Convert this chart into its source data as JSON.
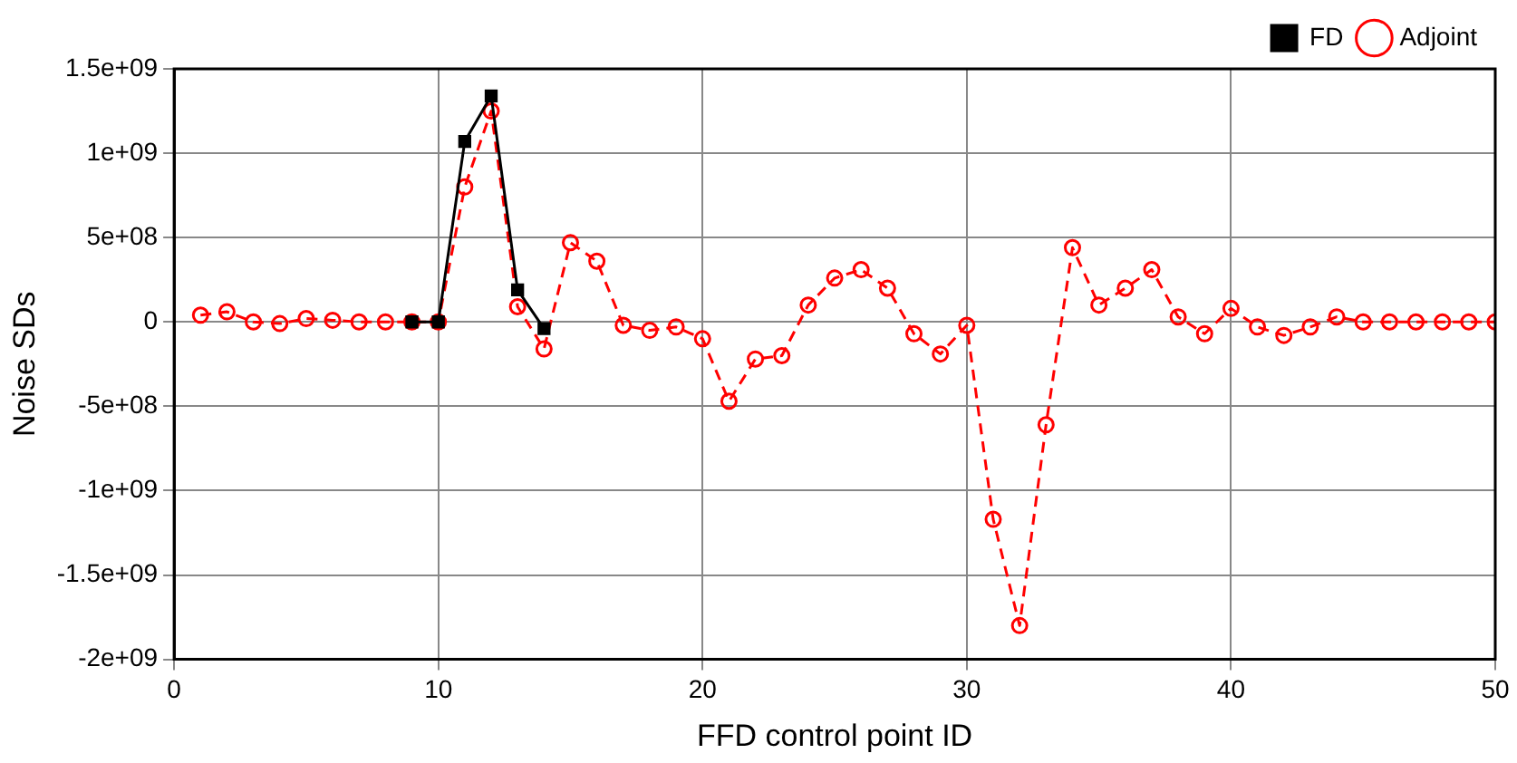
{
  "chart_data": {
    "type": "line",
    "xlabel": "FFD control point ID",
    "ylabel": "Noise SDs",
    "xlim": [
      0,
      50
    ],
    "xticks": [
      0,
      10,
      20,
      30,
      40,
      50
    ],
    "ylim": [
      -2000000000,
      1500000000
    ],
    "yticks": [
      {
        "value": -2000000000,
        "label": "-2e+09"
      },
      {
        "value": -1500000000,
        "label": "-1.5e+09"
      },
      {
        "value": -1000000000,
        "label": "-1e+09"
      },
      {
        "value": -500000000,
        "label": "-5e+08"
      },
      {
        "value": 0,
        "label": "0"
      },
      {
        "value": 500000000,
        "label": "5e+08"
      },
      {
        "value": 1000000000,
        "label": "1e+09"
      },
      {
        "value": 1500000000,
        "label": "1.5e+09"
      }
    ],
    "grid": true,
    "legend": "top right",
    "series": [
      {
        "name": "FD",
        "color": "#000000",
        "marker": "square",
        "line_style": "solid",
        "x": [
          9,
          10,
          11,
          12,
          13,
          14
        ],
        "values": [
          0,
          0,
          1070000000,
          1340000000,
          190000000,
          -40000000
        ]
      },
      {
        "name": "Adjoint",
        "color": "#ff0000",
        "marker": "circle",
        "line_style": "dashed",
        "x": [
          1,
          2,
          3,
          4,
          5,
          6,
          7,
          8,
          9,
          10,
          11,
          12,
          13,
          14,
          15,
          16,
          17,
          18,
          19,
          20,
          21,
          22,
          23,
          24,
          25,
          26,
          27,
          28,
          29,
          30,
          31,
          32,
          33,
          34,
          35,
          36,
          37,
          38,
          39,
          40,
          41,
          42,
          43,
          44,
          45,
          46,
          47,
          48,
          49,
          50
        ],
        "values": [
          40000000,
          60000000,
          0,
          -10000000,
          20000000,
          10000000,
          0,
          0,
          0,
          0,
          800000000,
          1250000000,
          90000000,
          -160000000,
          470000000,
          360000000,
          -20000000,
          -50000000,
          -30000000,
          -100000000,
          -470000000,
          -220000000,
          -200000000,
          100000000,
          260000000,
          310000000,
          200000000,
          -70000000,
          -190000000,
          -20000000,
          -1170000000,
          -1800000000,
          -610000000,
          440000000,
          100000000,
          200000000,
          310000000,
          30000000,
          -70000000,
          80000000,
          -30000000,
          -80000000,
          -30000000,
          30000000,
          0,
          0,
          0,
          0,
          0,
          0
        ]
      }
    ]
  }
}
